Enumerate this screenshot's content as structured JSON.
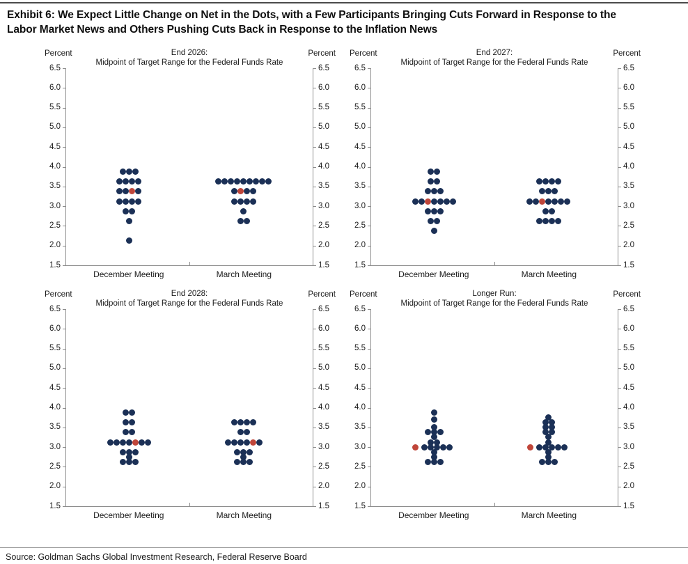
{
  "header": {
    "title_line1": "Exhibit 6: We Expect Little Change on Net in the Dots, with a Few Participants Bringing Cuts Forward in Response to the",
    "title_line2": "Labor Market News and Others Pushing Cuts Back in Response to the Inflation News"
  },
  "footer": {
    "source": "Source: Goldman Sachs Global Investment Research, Federal Reserve Board"
  },
  "axis": {
    "unit_label": "Percent",
    "yticks": [
      "6.5",
      "6.0",
      "5.5",
      "5.0",
      "4.5",
      "4.0",
      "3.5",
      "3.0",
      "2.5",
      "2.0",
      "1.5"
    ]
  },
  "colors": {
    "dot_blue": "#1b3056",
    "dot_red": "#c0463a",
    "axis": "#8c8c8c"
  },
  "chart_data": [
    {
      "type": "scatter",
      "title": "End 2026:",
      "subtitle": "Midpoint of Target Range for the Federal Funds Rate",
      "ylabel": "Percent",
      "ylim": [
        1.5,
        6.5
      ],
      "grid": false,
      "categories": [
        "December Meeting",
        "March Meeting"
      ],
      "series": [
        {
          "name": "December Meeting",
          "rows": [
            {
              "rate": 3.875,
              "count": 3
            },
            {
              "rate": 3.625,
              "count": 4
            },
            {
              "rate": 3.375,
              "count": 4,
              "red_index": 2
            },
            {
              "rate": 3.125,
              "count": 4
            },
            {
              "rate": 2.875,
              "count": 2
            },
            {
              "rate": 2.625,
              "count": 1
            },
            {
              "rate": 2.125,
              "count": 1
            }
          ]
        },
        {
          "name": "March Meeting",
          "rows": [
            {
              "rate": 3.625,
              "count": 9
            },
            {
              "rate": 3.375,
              "count": 4,
              "red_index": 1
            },
            {
              "rate": 3.125,
              "count": 4
            },
            {
              "rate": 2.875,
              "count": 1
            },
            {
              "rate": 2.625,
              "count": 2
            }
          ]
        }
      ]
    },
    {
      "type": "scatter",
      "title": "End 2027:",
      "subtitle": "Midpoint of Target Range for the Federal Funds Rate",
      "ylabel": "Percent",
      "ylim": [
        1.5,
        6.5
      ],
      "grid": false,
      "categories": [
        "December Meeting",
        "March Meeting"
      ],
      "series": [
        {
          "name": "December Meeting",
          "rows": [
            {
              "rate": 3.875,
              "count": 2
            },
            {
              "rate": 3.625,
              "count": 2
            },
            {
              "rate": 3.375,
              "count": 3
            },
            {
              "rate": 3.125,
              "count": 7,
              "red_index": 2
            },
            {
              "rate": 2.875,
              "count": 3
            },
            {
              "rate": 2.625,
              "count": 2
            },
            {
              "rate": 2.375,
              "count": 1
            }
          ]
        },
        {
          "name": "March Meeting",
          "rows": [
            {
              "rate": 3.625,
              "count": 4
            },
            {
              "rate": 3.375,
              "count": 3
            },
            {
              "rate": 3.125,
              "count": 7,
              "red_index": 2
            },
            {
              "rate": 2.875,
              "count": 2
            },
            {
              "rate": 2.625,
              "count": 4
            }
          ]
        }
      ]
    },
    {
      "type": "scatter",
      "title": "End 2028:",
      "subtitle": "Midpoint of Target Range for the Federal Funds Rate",
      "ylabel": "Percent",
      "ylim": [
        1.5,
        6.5
      ],
      "grid": false,
      "categories": [
        "December Meeting",
        "March Meeting"
      ],
      "series": [
        {
          "name": "December Meeting",
          "rows": [
            {
              "rate": 3.875,
              "count": 2
            },
            {
              "rate": 3.625,
              "count": 2
            },
            {
              "rate": 3.375,
              "count": 2
            },
            {
              "rate": 3.125,
              "count": 7,
              "red_index": 4
            },
            {
              "rate": 2.875,
              "count": 3
            },
            {
              "rate": 2.75,
              "count": 1
            },
            {
              "rate": 2.625,
              "count": 3
            }
          ]
        },
        {
          "name": "March Meeting",
          "rows": [
            {
              "rate": 3.625,
              "count": 4
            },
            {
              "rate": 3.375,
              "count": 2
            },
            {
              "rate": 3.125,
              "count": 6,
              "red_index": 4
            },
            {
              "rate": 2.875,
              "count": 3
            },
            {
              "rate": 2.75,
              "count": 1
            },
            {
              "rate": 2.625,
              "count": 3
            }
          ]
        }
      ]
    },
    {
      "type": "scatter",
      "title": "Longer Run:",
      "subtitle": "Midpoint of Target Range for the Federal Funds Rate",
      "ylabel": "Percent",
      "ylim": [
        1.5,
        6.5
      ],
      "grid": false,
      "categories": [
        "December Meeting",
        "March Meeting"
      ],
      "series": [
        {
          "name": "December Meeting",
          "rows": [
            {
              "rate": 3.875,
              "count": 1
            },
            {
              "rate": 3.7,
              "count": 1
            },
            {
              "rate": 3.5,
              "count": 1
            },
            {
              "rate": 3.375,
              "count": 3
            },
            {
              "rate": 3.25,
              "count": 1
            },
            {
              "rate": 3.125,
              "count": 2
            },
            {
              "rate": 3.0,
              "count": 6,
              "red_index": 0,
              "red_gap": 4
            },
            {
              "rate": 2.875,
              "count": 1
            },
            {
              "rate": 2.75,
              "count": 1
            },
            {
              "rate": 2.625,
              "count": 3
            }
          ]
        },
        {
          "name": "March Meeting",
          "rows": [
            {
              "rate": 3.75,
              "count": 1
            },
            {
              "rate": 3.625,
              "count": 2
            },
            {
              "rate": 3.5,
              "count": 2
            },
            {
              "rate": 3.375,
              "count": 2
            },
            {
              "rate": 3.25,
              "count": 1
            },
            {
              "rate": 3.125,
              "count": 1
            },
            {
              "rate": 3.0,
              "count": 6,
              "red_index": 0,
              "red_gap": 4
            },
            {
              "rate": 2.875,
              "count": 1
            },
            {
              "rate": 2.75,
              "count": 1
            },
            {
              "rate": 2.625,
              "count": 3
            }
          ]
        }
      ]
    }
  ]
}
